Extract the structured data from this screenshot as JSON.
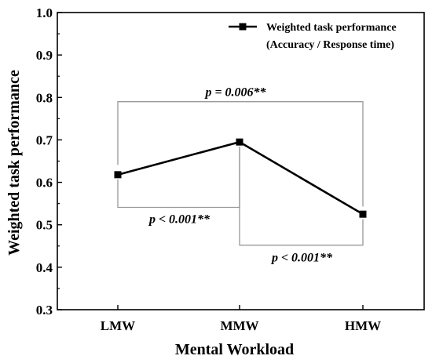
{
  "chart_data": {
    "type": "line",
    "title": "",
    "xlabel": "Mental Workload",
    "ylabel": "Weighted task performance",
    "categories": [
      "LMW",
      "MMW",
      "HMW"
    ],
    "ylim": [
      0.3,
      1.0
    ],
    "yticks": [
      "0.3",
      "0.4",
      "0.5",
      "0.6",
      "0.7",
      "0.8",
      "0.9",
      "1.0"
    ],
    "grid": false,
    "legend_position": "top-right",
    "series": [
      {
        "name": "Weighted task performance",
        "name_line2": "(Accuracy / Response time)",
        "values": [
          0.618,
          0.695,
          0.525
        ],
        "color": "#000000",
        "marker": "square"
      }
    ],
    "annotations": [
      {
        "label": "p = 0.006**",
        "from": "LMW",
        "to": "HMW",
        "y_top": 0.79,
        "y_bottom_left": 0.641,
        "y_bottom_right": 0.543
      },
      {
        "label": "p < 0.001**",
        "from": "LMW",
        "to": "MMW",
        "y_bottom": 0.541,
        "y_top_left": 0.607,
        "y_top_right": 0.684
      },
      {
        "label": "p < 0.001**",
        "from": "MMW",
        "to": "HMW",
        "y_bottom": 0.452,
        "y_top_left": 0.684,
        "y_top_right": 0.513
      }
    ],
    "bracket_color": "#999999"
  }
}
